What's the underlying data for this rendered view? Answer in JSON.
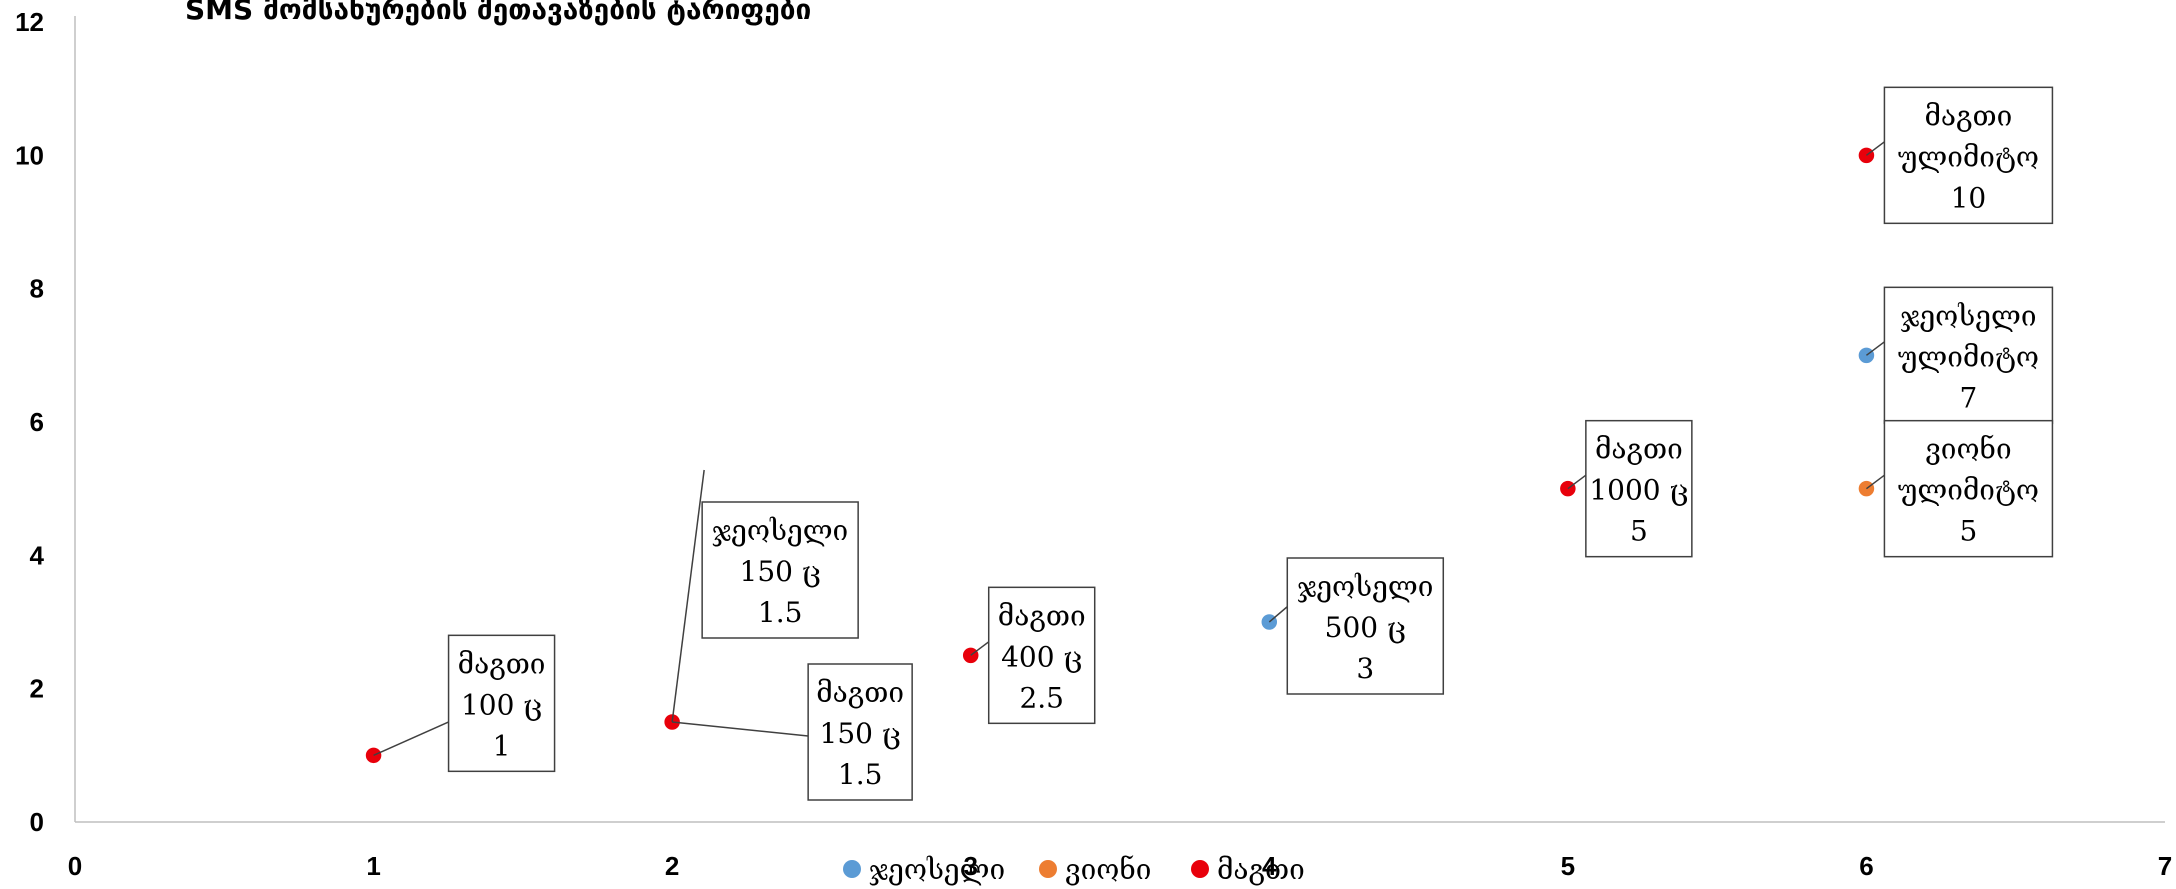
{
  "chart_data": {
    "type": "scatter",
    "title": "SMS მომსახურების შეთავაზების ტარიფები",
    "xlim": [
      0,
      7
    ],
    "ylim": [
      0,
      12
    ],
    "x_ticks": [
      "0",
      "1",
      "2",
      "3",
      "4",
      "5",
      "6",
      "7"
    ],
    "y_ticks": [
      "0",
      "2",
      "4",
      "6",
      "8",
      "10",
      "12"
    ],
    "grid": false,
    "legend_position": "bottom",
    "series": [
      {
        "name": "ჯეოსელი",
        "color": "#5B9BD5",
        "points": [
          {
            "x": 2,
            "y": 1.5,
            "label": [
              "ჯეოსელი",
              "150 ც",
              "1.5"
            ]
          },
          {
            "x": 4,
            "y": 3,
            "label": [
              "ჯეოსელი",
              "500 ც",
              "3"
            ]
          },
          {
            "x": 6,
            "y": 7,
            "label": [
              "ჯეოსელი",
              "ულიმიტო",
              "7"
            ]
          }
        ]
      },
      {
        "name": "ვიონი",
        "color": "#ED7D31",
        "points": [
          {
            "x": 6,
            "y": 5,
            "label": [
              "ვიონი",
              "ულიმიტო",
              "5"
            ]
          }
        ]
      },
      {
        "name": "მაგთი",
        "color": "#E8000B",
        "points": [
          {
            "x": 1,
            "y": 1,
            "label": [
              "მაგთი",
              "100 ც",
              "1"
            ]
          },
          {
            "x": 2,
            "y": 1.5,
            "label": [
              "მაგთი",
              "150 ც",
              "1.5"
            ]
          },
          {
            "x": 3,
            "y": 2.5,
            "label": [
              "მაგთი",
              "400 ც",
              "2.5"
            ]
          },
          {
            "x": 5,
            "y": 5,
            "label": [
              "მაგთი",
              "1000 ც",
              "5"
            ]
          },
          {
            "x": 6,
            "y": 10,
            "label": [
              "მაგთი",
              "ულიმიტო",
              "10"
            ]
          }
        ]
      }
    ]
  }
}
